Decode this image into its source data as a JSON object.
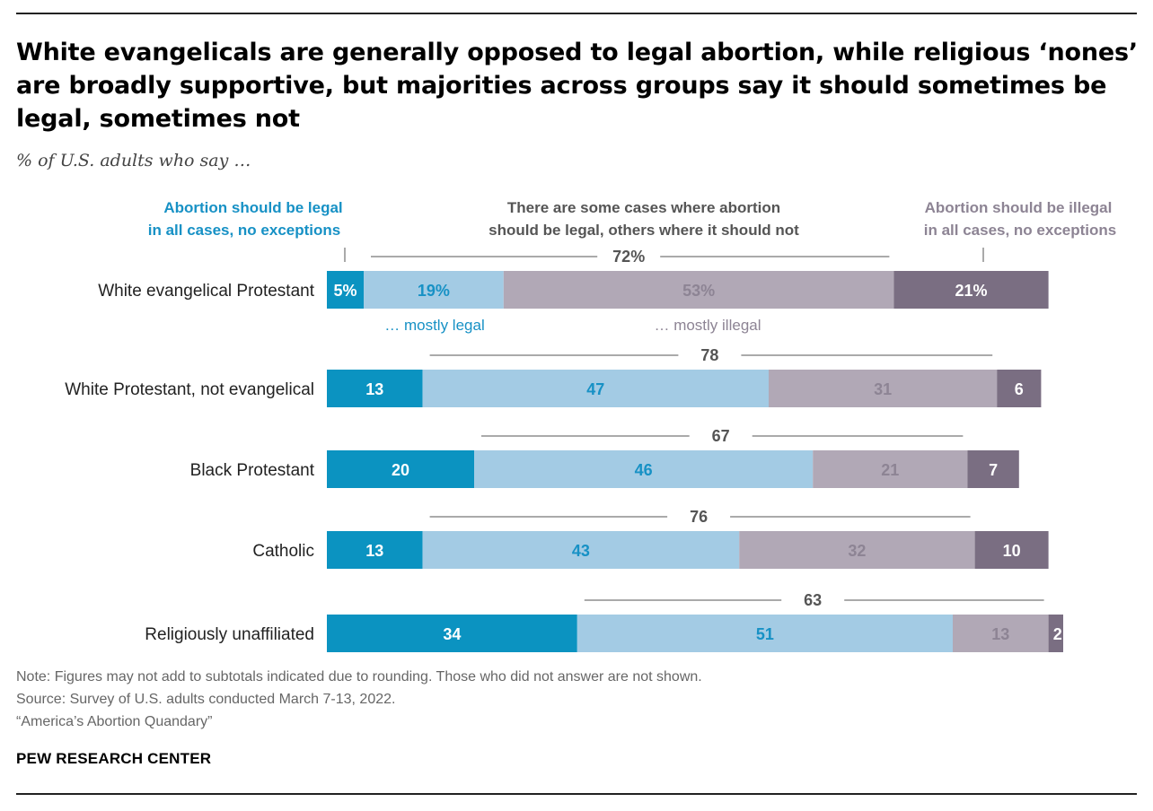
{
  "title": "White evangelicals are generally opposed to legal abortion, while religious ‘nones’ are broadly supportive, but majorities across groups say it should sometimes be legal, sometimes not",
  "subtitle": "% of U.S. adults who say …",
  "legend": {
    "legal_all_line1": "Abortion should be legal",
    "legal_all_line2": "in all cases, no exceptions",
    "some_cases_line1": "There are some cases where abortion",
    "some_cases_line2": "should be legal, others where it should not",
    "illegal_all_line1": "Abortion should be illegal",
    "illegal_all_line2": "in all cases, no exceptions",
    "mostly_legal": "… mostly legal",
    "mostly_illegal": "… mostly illegal"
  },
  "colors": {
    "legal_all": "#0b93c1",
    "mostly_legal": "#a3cbe4",
    "mostly_illegal": "#b1a8b6",
    "illegal_all": "#7a6e82",
    "legal_text": "#1791c5",
    "illegal_text": "#8d8494",
    "subtotal_text": "#555555"
  },
  "chart_data": {
    "type": "bar",
    "orientation": "horizontal-stacked",
    "categories": [
      "White evangelical Protestant",
      "White Protestant, not evangelical",
      "Black Protestant",
      "Catholic",
      "Religiously unaffiliated"
    ],
    "series": [
      {
        "name": "Abortion should be legal in all cases, no exceptions",
        "values": [
          5,
          13,
          20,
          13,
          34
        ],
        "labels": [
          "5%",
          "13",
          "20",
          "13",
          "34"
        ]
      },
      {
        "name": "… mostly legal",
        "values": [
          19,
          47,
          46,
          43,
          51
        ],
        "labels": [
          "19%",
          "47",
          "46",
          "43",
          "51"
        ]
      },
      {
        "name": "… mostly illegal",
        "values": [
          53,
          31,
          21,
          32,
          13
        ],
        "labels": [
          "53%",
          "31",
          "21",
          "32",
          "13"
        ]
      },
      {
        "name": "Abortion should be illegal in all cases, no exceptions",
        "values": [
          21,
          6,
          7,
          10,
          2
        ],
        "labels": [
          "21%",
          "6",
          "7",
          "10",
          "2"
        ]
      }
    ],
    "subtotals": {
      "name": "There are some cases where abortion should be legal, others where it should not",
      "values": [
        72,
        78,
        67,
        76,
        63
      ],
      "labels": [
        "72%",
        "78",
        "67",
        "76",
        "63"
      ]
    },
    "xlim": [
      0,
      100
    ]
  },
  "note": "Note: Figures may not add to subtotals indicated due to rounding. Those who did not answer are not shown.",
  "source": "Source: Survey of U.S. adults conducted March 7-13, 2022.",
  "report": "“America’s Abortion Quandary”",
  "brand": "PEW RESEARCH CENTER"
}
